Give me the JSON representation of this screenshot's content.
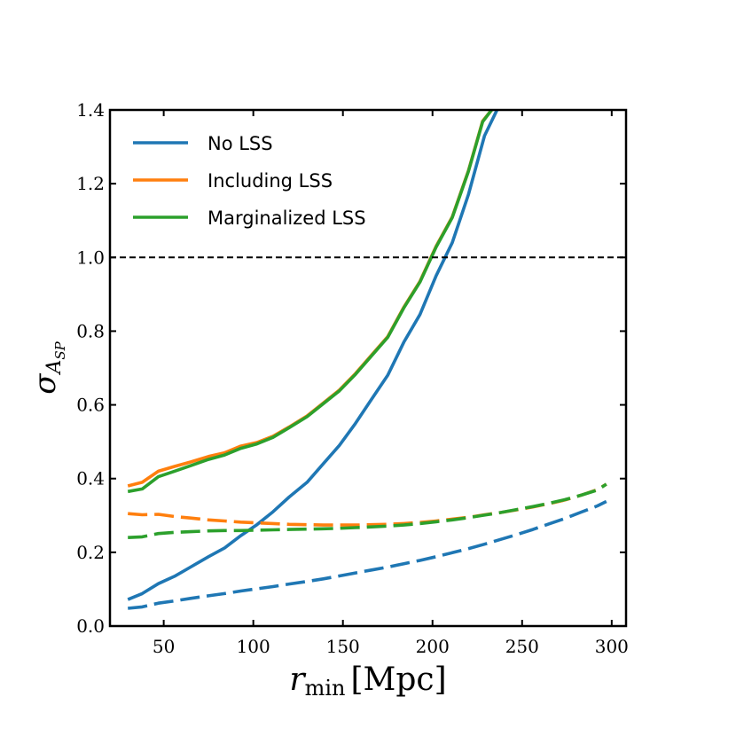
{
  "chart_data": {
    "type": "line",
    "xlabel_var": "r",
    "xlabel_sub": "min",
    "xlabel_unit": "[Mpc]",
    "ylabel_var": "σ",
    "ylabel_sub": "A",
    "ylabel_subsub": "SP",
    "xlim": [
      20,
      308
    ],
    "ylim": [
      0.0,
      1.4
    ],
    "xticks": [
      50,
      100,
      150,
      200,
      250,
      300
    ],
    "yticks": [
      0.0,
      0.2,
      0.4,
      0.6,
      0.8,
      1.0,
      1.2,
      1.4
    ],
    "x_tick_labels": [
      "50",
      "100",
      "150",
      "200",
      "250",
      "300"
    ],
    "y_tick_labels": [
      "0.0",
      "0.2",
      "0.4",
      "0.6",
      "0.8",
      "1.0",
      "1.2",
      "1.4"
    ],
    "reference_line": {
      "y": 1.0,
      "style": "dashed",
      "color": "#000000"
    },
    "legend": {
      "placement": "top-left"
    },
    "series": [
      {
        "name": "No LSS",
        "style": "solid",
        "color": "#1f77b4",
        "x": [
          30,
          38,
          47,
          56,
          65,
          75,
          84,
          93,
          102,
          111,
          120,
          130,
          139,
          148,
          157,
          166,
          175,
          184,
          193,
          202,
          211,
          220,
          229,
          236
        ],
        "y": [
          0.072,
          0.088,
          0.115,
          0.135,
          0.16,
          0.188,
          0.212,
          0.245,
          0.275,
          0.31,
          0.35,
          0.39,
          0.44,
          0.49,
          0.55,
          0.615,
          0.68,
          0.77,
          0.845,
          0.95,
          1.04,
          1.17,
          1.33,
          1.4
        ]
      },
      {
        "name": "Including LSS",
        "style": "solid",
        "color": "#ff7f0e",
        "x": [
          30,
          38,
          47,
          56,
          65,
          75,
          84,
          93,
          102,
          111,
          120,
          130,
          139,
          148,
          157,
          166,
          175,
          184,
          193,
          202,
          211,
          220,
          228,
          233
        ],
        "y": [
          0.38,
          0.39,
          0.42,
          0.433,
          0.445,
          0.46,
          0.47,
          0.488,
          0.498,
          0.515,
          0.54,
          0.57,
          0.605,
          0.64,
          0.685,
          0.735,
          0.785,
          0.865,
          0.935,
          1.03,
          1.11,
          1.235,
          1.37,
          1.4
        ]
      },
      {
        "name": "Marginalized LSS",
        "style": "solid",
        "color": "#2ca02c",
        "x": [
          30,
          38,
          47,
          56,
          65,
          75,
          84,
          93,
          102,
          111,
          120,
          130,
          139,
          148,
          157,
          166,
          175,
          184,
          193,
          202,
          211,
          220,
          228,
          233
        ],
        "y": [
          0.365,
          0.372,
          0.405,
          0.42,
          0.435,
          0.452,
          0.464,
          0.482,
          0.494,
          0.512,
          0.538,
          0.568,
          0.603,
          0.638,
          0.683,
          0.733,
          0.783,
          0.863,
          0.933,
          1.028,
          1.108,
          1.233,
          1.368,
          1.4
        ]
      },
      {
        "style": "dashed",
        "color": "#1f77b4",
        "x": [
          30,
          38,
          47,
          56,
          65,
          75,
          84,
          93,
          102,
          111,
          120,
          130,
          139,
          148,
          157,
          166,
          175,
          184,
          193,
          202,
          211,
          220,
          229,
          238,
          247,
          256,
          265,
          274,
          283,
          292,
          297
        ],
        "y": [
          0.048,
          0.052,
          0.062,
          0.068,
          0.075,
          0.082,
          0.088,
          0.095,
          0.101,
          0.107,
          0.114,
          0.121,
          0.128,
          0.136,
          0.144,
          0.152,
          0.16,
          0.169,
          0.178,
          0.188,
          0.199,
          0.21,
          0.222,
          0.235,
          0.248,
          0.262,
          0.277,
          0.292,
          0.309,
          0.326,
          0.338
        ]
      },
      {
        "style": "dashed",
        "color": "#ff7f0e",
        "x": [
          30,
          38,
          47,
          56,
          65,
          75,
          84,
          93,
          102,
          111,
          120,
          130,
          139,
          148,
          157,
          166,
          175,
          184,
          193,
          202,
          211,
          220,
          229,
          238,
          247,
          256,
          265,
          274,
          283,
          292,
          297
        ],
        "y": [
          0.305,
          0.302,
          0.303,
          0.297,
          0.293,
          0.288,
          0.285,
          0.282,
          0.28,
          0.278,
          0.276,
          0.275,
          0.274,
          0.274,
          0.274,
          0.275,
          0.276,
          0.278,
          0.281,
          0.285,
          0.29,
          0.295,
          0.302,
          0.308,
          0.315,
          0.323,
          0.332,
          0.342,
          0.355,
          0.37,
          0.385
        ]
      },
      {
        "style": "dashed",
        "color": "#2ca02c",
        "x": [
          30,
          38,
          47,
          56,
          65,
          75,
          84,
          93,
          102,
          111,
          120,
          130,
          139,
          148,
          157,
          166,
          175,
          184,
          193,
          202,
          211,
          220,
          229,
          238,
          247,
          256,
          265,
          274,
          283,
          292,
          297
        ],
        "y": [
          0.24,
          0.242,
          0.251,
          0.254,
          0.256,
          0.258,
          0.259,
          0.259,
          0.26,
          0.261,
          0.262,
          0.263,
          0.264,
          0.265,
          0.267,
          0.269,
          0.271,
          0.274,
          0.278,
          0.283,
          0.288,
          0.294,
          0.301,
          0.308,
          0.316,
          0.324,
          0.333,
          0.343,
          0.355,
          0.369,
          0.385
        ]
      }
    ]
  }
}
